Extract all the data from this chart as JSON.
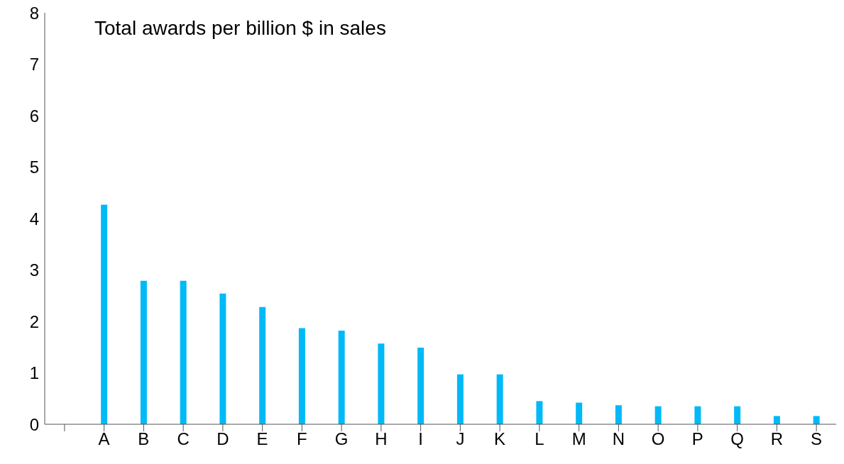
{
  "chart_data": {
    "type": "bar",
    "title": "Total awards per billion $ in sales",
    "categories": [
      null,
      "A",
      "B",
      "C",
      "D",
      "E",
      "F",
      "G",
      "H",
      "I",
      "J",
      "K",
      "L",
      "M",
      "N",
      "O",
      "P",
      "Q",
      "R",
      "S"
    ],
    "values": [
      null,
      4.27,
      2.79,
      2.79,
      2.54,
      2.28,
      1.87,
      1.82,
      1.57,
      1.49,
      0.97,
      0.97,
      0.45,
      0.42,
      0.37,
      0.35,
      0.35,
      0.35,
      0.16,
      0.16
    ],
    "color": "#00b9f7",
    "ylim": [
      0,
      8
    ],
    "yticks": [
      0,
      1,
      2,
      3,
      4,
      5,
      6,
      7,
      8
    ],
    "grid": false,
    "legend": false
  }
}
